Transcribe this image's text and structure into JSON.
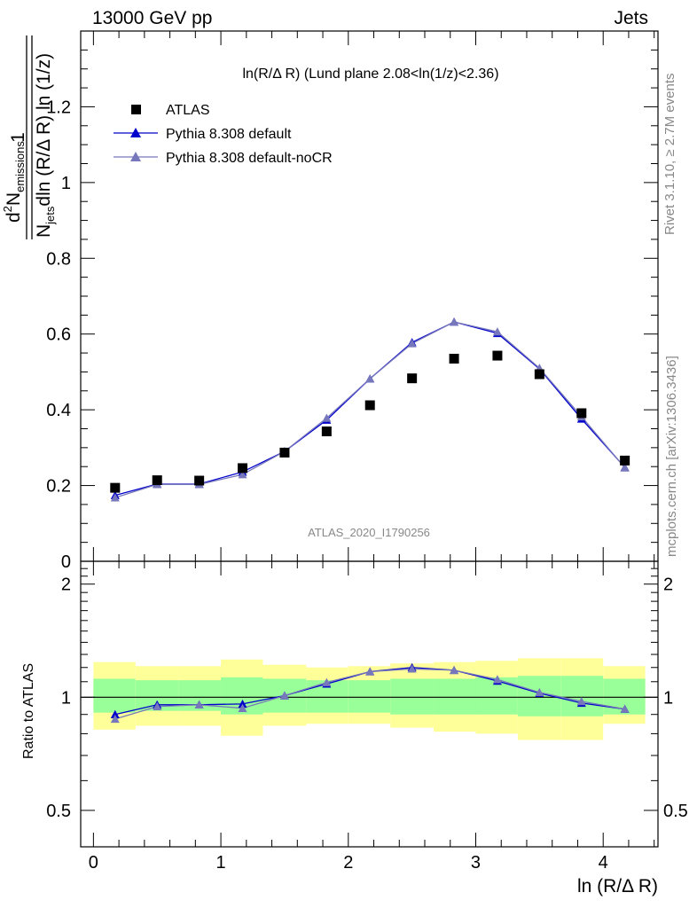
{
  "header": {
    "left": "13000 GeV pp",
    "right": "Jets"
  },
  "side": {
    "rivet": "Rivet 3.1.10, ≥ 2.7M events",
    "mcplots": "mcplots.cern.ch [arXiv:1306.3436]"
  },
  "analysis_id": "ATLAS_2020_I1790256",
  "panel_title": "ln(R/Δ R) (Lund plane 2.08<ln(1/z)<2.36)",
  "legend": {
    "data": "ATLAS",
    "mc1": "Pythia 8.308 default",
    "mc2": "Pythia 8.308 default-noCR"
  },
  "colors": {
    "data": "#000000",
    "mc1": "#0000cc",
    "mc2": "#7777bb",
    "band_inner": "#99ff99",
    "band_outer": "#ffff99"
  },
  "chart_data": [
    {
      "type": "scatter",
      "title": "ln(R/Δ R) (Lund plane 2.08<ln(1/z)<2.36)",
      "ylabel": "1/N_jets d²N_emissions / dln(R/ΔR) ln(1/z)",
      "ylabel_parts": {
        "frac_one": "1",
        "nm_d": "d",
        "nm_sup": "2",
        "nm_N": "N",
        "nm_sub": "emissions",
        "den_N": "N",
        "den_sub": "jets",
        "den_rest": "dln (R/Δ R) ln (1/z)"
      },
      "xlim": [
        -0.1,
        4.43
      ],
      "ylim": [
        0,
        1.4
      ],
      "yticks": [
        0,
        0.2,
        0.4,
        0.6,
        0.8,
        1,
        1.2
      ],
      "yticklabels": [
        "0",
        "0.2",
        "0.4",
        "0.6",
        "0.8",
        "1",
        "1.2"
      ],
      "x": [
        0.17,
        0.5,
        0.83,
        1.17,
        1.5,
        1.83,
        2.17,
        2.5,
        2.83,
        3.17,
        3.5,
        3.83,
        4.17
      ],
      "series": [
        {
          "name": "ATLAS",
          "values": [
            0.194,
            0.214,
            0.213,
            0.246,
            0.287,
            0.343,
            0.412,
            0.483,
            0.535,
            0.543,
            0.494,
            0.391,
            0.266
          ]
        },
        {
          "name": "Pythia 8.308 default",
          "values": [
            0.174,
            0.204,
            0.204,
            0.236,
            0.29,
            0.373,
            0.482,
            0.578,
            0.632,
            0.602,
            0.508,
            0.376,
            0.248
          ]
        },
        {
          "name": "Pythia 8.308 default-noCR",
          "values": [
            0.168,
            0.203,
            0.203,
            0.229,
            0.29,
            0.378,
            0.482,
            0.575,
            0.632,
            0.606,
            0.51,
            0.382,
            0.247
          ]
        }
      ]
    },
    {
      "type": "line",
      "ylabel": "Ratio to ATLAS",
      "xlabel": "ln (R/Δ R)",
      "xlim": [
        -0.1,
        4.43
      ],
      "ylim": [
        0.4,
        2.3
      ],
      "log_y": true,
      "xticks": [
        0,
        1,
        2,
        3,
        4
      ],
      "xticklabels": [
        "0",
        "1",
        "2",
        "3",
        "4"
      ],
      "yticks": [
        0.5,
        1,
        2
      ],
      "yticklabels": [
        "0.5",
        "1",
        "2"
      ],
      "x": [
        0.17,
        0.5,
        0.83,
        1.17,
        1.5,
        1.83,
        2.17,
        2.5,
        2.83,
        3.17,
        3.5,
        3.83,
        4.17
      ],
      "bin_edges": [
        0,
        0.33,
        0.67,
        1,
        1.33,
        1.67,
        2,
        2.33,
        2.67,
        3,
        3.33,
        3.67,
        4,
        4.33
      ],
      "band_inner": {
        "lo": [
          0.91,
          0.92,
          0.92,
          0.9,
          0.91,
          0.91,
          0.91,
          0.9,
          0.9,
          0.9,
          0.89,
          0.89,
          0.9
        ],
        "hi": [
          1.12,
          1.11,
          1.11,
          1.13,
          1.12,
          1.11,
          1.11,
          1.12,
          1.12,
          1.13,
          1.14,
          1.14,
          1.12
        ]
      },
      "band_outer": {
        "lo": [
          0.82,
          0.84,
          0.84,
          0.79,
          0.84,
          0.85,
          0.85,
          0.83,
          0.81,
          0.8,
          0.77,
          0.77,
          0.85
        ],
        "hi": [
          1.24,
          1.21,
          1.21,
          1.26,
          1.22,
          1.2,
          1.21,
          1.23,
          1.24,
          1.25,
          1.27,
          1.27,
          1.21
        ]
      },
      "reference_line": 1,
      "series": [
        {
          "name": "Pythia 8.308 default",
          "values": [
            0.9,
            0.955,
            0.955,
            0.96,
            1.01,
            1.085,
            1.17,
            1.2,
            1.18,
            1.105,
            1.025,
            0.965,
            0.93
          ]
        },
        {
          "name": "Pythia 8.308 default-noCR",
          "values": [
            0.875,
            0.945,
            0.955,
            0.935,
            1.01,
            1.095,
            1.17,
            1.19,
            1.18,
            1.115,
            1.03,
            0.975,
            0.93
          ]
        }
      ]
    }
  ]
}
